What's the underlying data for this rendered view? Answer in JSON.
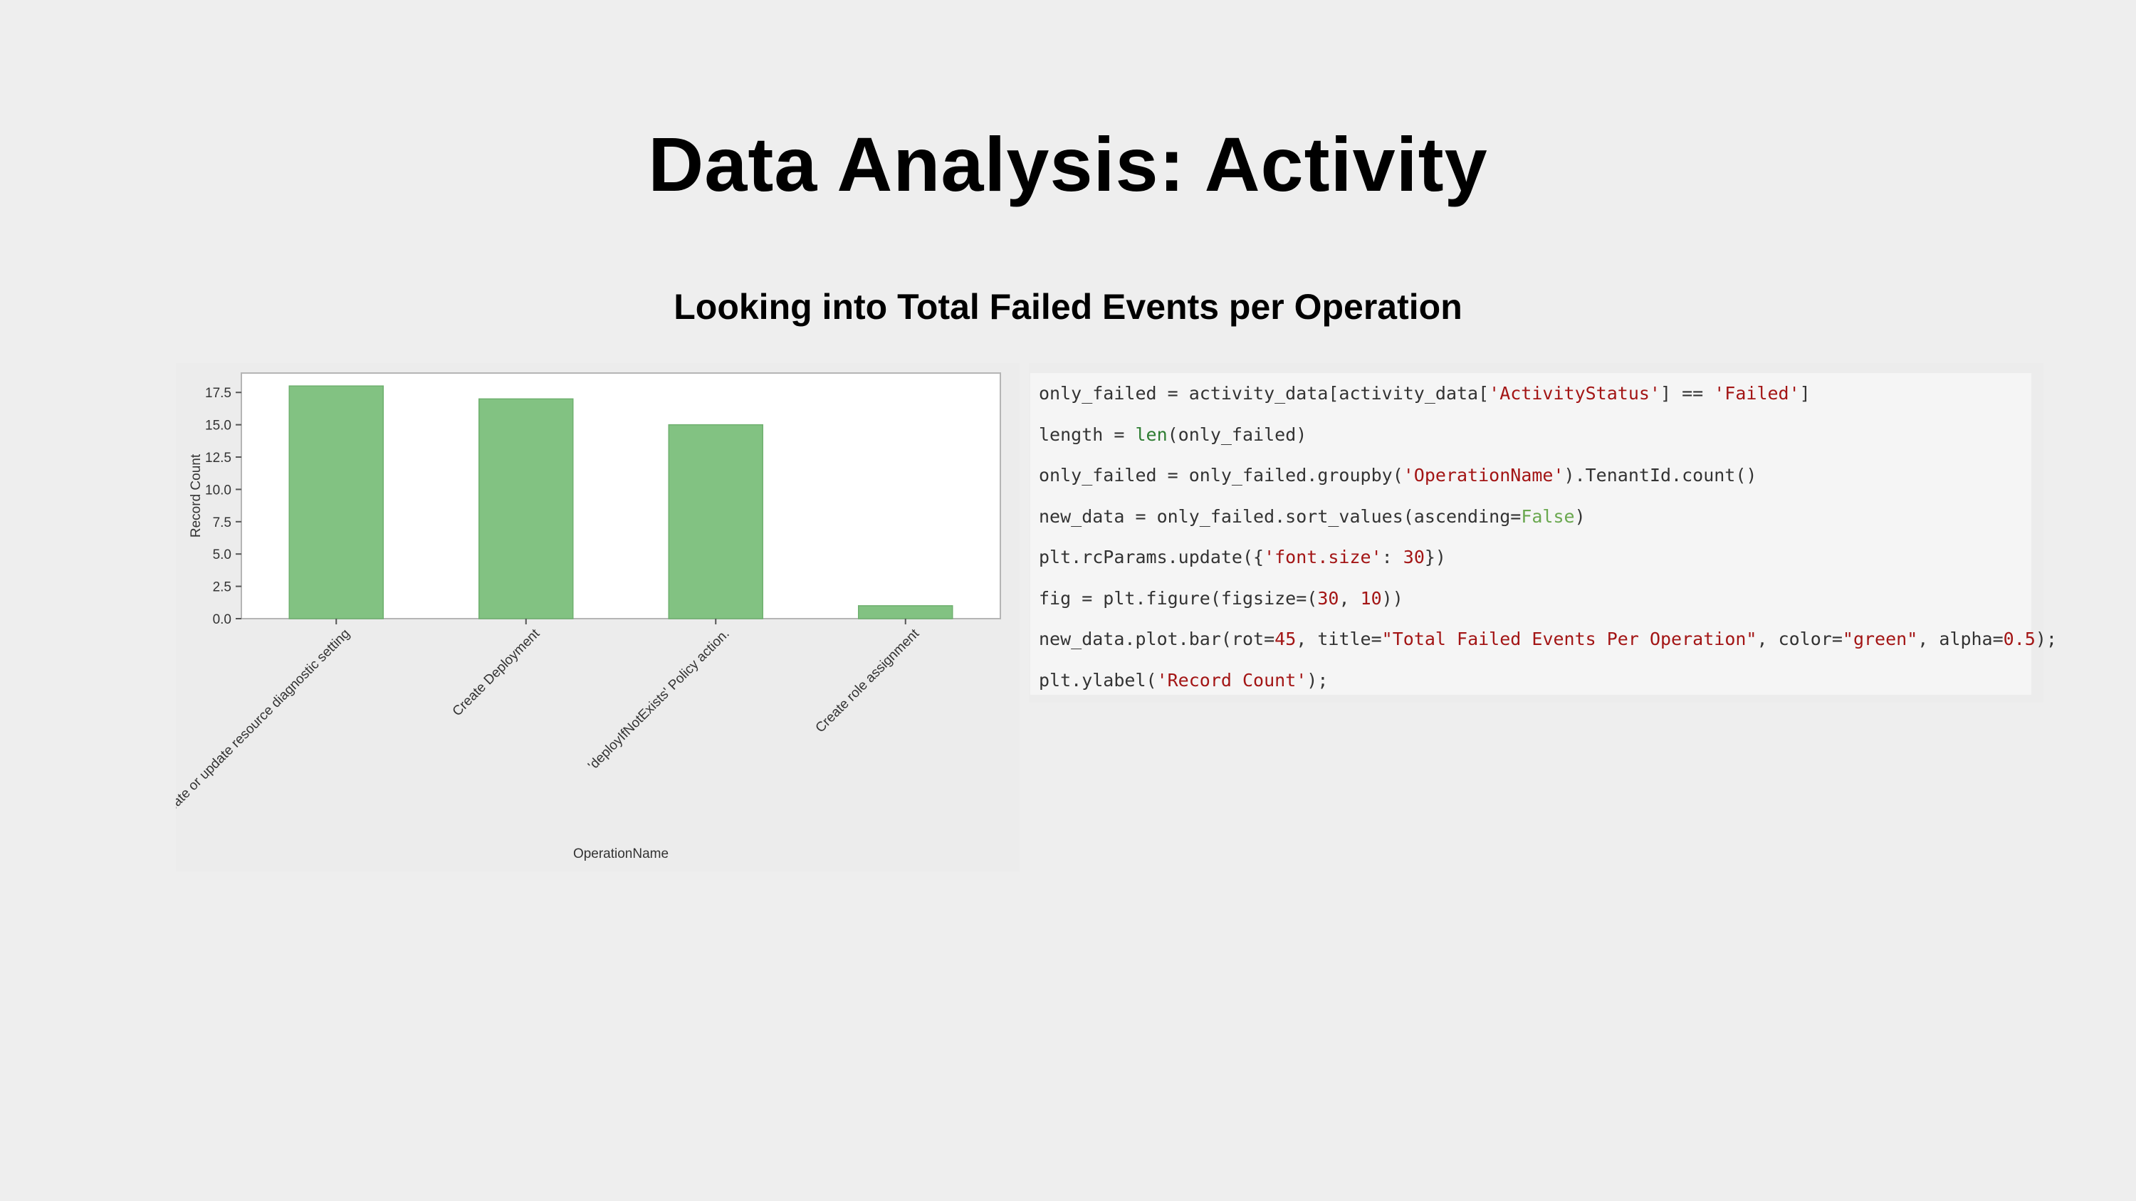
{
  "slide": {
    "title": "Data Analysis: Activity",
    "subtitle": "Looking into Total Failed Events per Operation"
  },
  "colors": {
    "background": "#eeeeee",
    "bar": "#82c282",
    "bar_edge": "#6fb06f",
    "code_string": "#a31515",
    "code_builtin": "#2e7d32",
    "code_keyword": "#6aa84f"
  },
  "chart_data": {
    "type": "bar",
    "categories": [
      "Create or update resource diagnostic setting",
      "Create Deployment",
      "'deployIfNotExists' Policy action.",
      "Create role assignment"
    ],
    "values": [
      18,
      17,
      15,
      1
    ],
    "xlabel": "OperationName",
    "ylabel": "Record Count",
    "ylim": [
      0,
      19
    ],
    "yticks": [
      "0.0",
      "2.5",
      "5.0",
      "7.5",
      "10.0",
      "12.5",
      "15.0",
      "17.5"
    ],
    "grid": false,
    "bar_color": "green",
    "alpha": 0.5
  },
  "code": {
    "lines": [
      [
        {
          "t": "only_failed = activity_data[activity_data["
        },
        {
          "t": "'ActivityStatus'",
          "c": "str"
        },
        {
          "t": "] == "
        },
        {
          "t": "'Failed'",
          "c": "str"
        },
        {
          "t": "]"
        }
      ],
      [
        {
          "t": "length = "
        },
        {
          "t": "len",
          "c": "builtin"
        },
        {
          "t": "(only_failed)"
        }
      ],
      [
        {
          "t": "only_failed = only_failed.groupby("
        },
        {
          "t": "'OperationName'",
          "c": "str"
        },
        {
          "t": ").TenantId.count()"
        }
      ],
      [
        {
          "t": "new_data = only_failed.sort_values(ascending="
        },
        {
          "t": "False",
          "c": "kw"
        },
        {
          "t": ")"
        }
      ],
      [
        {
          "t": "plt.rcParams.update({"
        },
        {
          "t": "'font.size'",
          "c": "str"
        },
        {
          "t": ": "
        },
        {
          "t": "30",
          "c": "num"
        },
        {
          "t": "})"
        }
      ],
      [
        {
          "t": "fig = plt.figure(figsize=("
        },
        {
          "t": "30",
          "c": "num"
        },
        {
          "t": ", "
        },
        {
          "t": "10",
          "c": "num"
        },
        {
          "t": "))"
        }
      ],
      [
        {
          "t": "new_data.plot.bar(rot="
        },
        {
          "t": "45",
          "c": "num"
        },
        {
          "t": ", title="
        },
        {
          "t": "\"Total Failed Events Per Operation\"",
          "c": "str"
        },
        {
          "t": ", color="
        },
        {
          "t": "\"green\"",
          "c": "str"
        },
        {
          "t": ", alpha="
        },
        {
          "t": "0.5",
          "c": "num"
        },
        {
          "t": ");"
        }
      ],
      [
        {
          "t": "plt.ylabel("
        },
        {
          "t": "'Record Count'",
          "c": "str"
        },
        {
          "t": ");"
        }
      ]
    ]
  }
}
